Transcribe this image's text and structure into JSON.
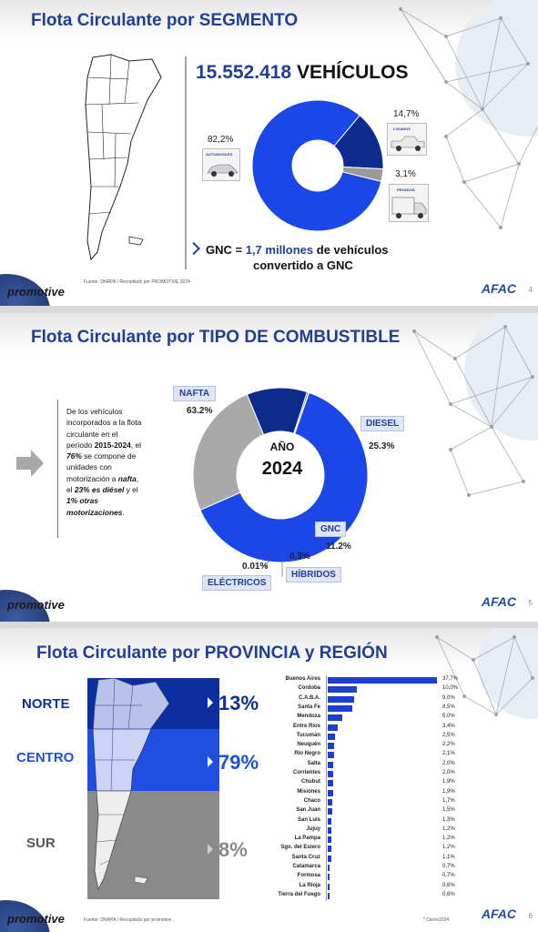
{
  "slide1": {
    "title": "Flota Circulante por SEGMENTO",
    "total_vehicles": "15.552.418",
    "total_vehicles_suffix": "VEHÍCULOS",
    "source": "Fuente: DNRPA / Recopilado por PROMOTIVE 2024",
    "gnc_line1_pre": "GNC = ",
    "gnc_line1_value": "1,7 millones",
    "gnc_line1_post": " de vehículos",
    "gnc_line2": "convertido a GNC",
    "segments": [
      {
        "label": "AUTOMOVILES",
        "pct": "82,2%"
      },
      {
        "label": "LIVIANOS",
        "pct": "14,7%"
      },
      {
        "label": "PESADOS",
        "pct": "3,1%"
      }
    ],
    "page": "4"
  },
  "slide2": {
    "title": "Flota Circulante por TIPO DE COMBUSTIBLE",
    "center_label": "AÑO",
    "center_year": "2024",
    "text_lines": [
      "De los vehículos",
      "incorporados a la flota",
      "circulante en el",
      "período ",
      "2015-2024",
      ", el",
      "76%",
      " se compone de",
      "unidades con",
      "motorización a ",
      "nafta",
      ",",
      "el ",
      "23% es diésel",
      " y el",
      "1% otras",
      "motorizaciones",
      "."
    ],
    "fuels": [
      {
        "label": "NAFTA",
        "pct": "63.2%"
      },
      {
        "label": "DIESEL",
        "pct": "25.3%"
      },
      {
        "label": "GNC",
        "pct": "11.2%"
      },
      {
        "label": "HÍBRIDOS",
        "pct": "0.3%"
      },
      {
        "label": "ELÉCTRICOS",
        "pct": "0.01%"
      }
    ],
    "page": "5"
  },
  "slide3": {
    "title": "Flota Circulante por PROVINCIA y REGIÓN",
    "regions": [
      {
        "label": "NORTE",
        "pct": "13%",
        "color": "#0b2f9e"
      },
      {
        "label": "CENTRO",
        "pct": "79%",
        "color": "#1f4fe0"
      },
      {
        "label": "SUR",
        "pct": "8%",
        "color": "#8a8a8a"
      }
    ],
    "source": "Fuente: DNRPA / Recopilado por promotive",
    "footnote": "* Cierre2024",
    "page": "6"
  },
  "brand": "promotive",
  "afac": "AFAC",
  "chart_data": [
    {
      "type": "pie",
      "title": "Flota Circulante por SEGMENTO",
      "categories": [
        "AUTOMOVILES",
        "LIVIANOS",
        "PESADOS"
      ],
      "values": [
        82.2,
        14.7,
        3.1
      ],
      "colors": [
        "#1b47e8",
        "#0d2a8c",
        "#9a9a9a"
      ]
    },
    {
      "type": "pie",
      "title": "Flota Circulante por TIPO DE COMBUSTIBLE",
      "categories": [
        "NAFTA",
        "DIESEL",
        "GNC",
        "HÍBRIDOS",
        "ELÉCTRICOS"
      ],
      "values": [
        63.2,
        25.3,
        11.2,
        0.3,
        0.01
      ],
      "colors": [
        "#1b47e8",
        "#a9a9a9",
        "#0d2a8c",
        "#5a5a5a",
        "#cccccc"
      ]
    },
    {
      "type": "bar",
      "title": "Flota Circulante por PROVINCIA y REGIÓN",
      "orientation": "horizontal",
      "categories": [
        "Buenos Aires",
        "Córdoba",
        "C.A.B.A.",
        "Santa Fe",
        "Mendoza",
        "Entre Ríos",
        "Tucumán",
        "Neuquén",
        "Rio Negro",
        "Salta",
        "Corrientes",
        "Chubut",
        "Misiones",
        "Chaco",
        "San Juan",
        "San Luis",
        "Jujuy",
        "La Pampa",
        "Sgo. del Estero",
        "Santa Cruz",
        "Catamarca",
        "Formosa",
        "La Rioja",
        "Tierra del Fuego"
      ],
      "values": [
        37.7,
        10.0,
        9.0,
        8.5,
        5.0,
        3.4,
        2.5,
        2.2,
        2.1,
        2.0,
        2.0,
        1.9,
        1.9,
        1.7,
        1.5,
        1.3,
        1.2,
        1.2,
        1.2,
        1.1,
        0.7,
        0.7,
        0.6,
        0.6
      ],
      "labels": [
        "37,7%",
        "10,0%",
        "9,0%",
        "8,5%",
        "5,0%",
        "3,4%",
        "2,5%",
        "2,2%",
        "2,1%",
        "2,0%",
        "2,0%",
        "1,9%",
        "1,9%",
        "1,7%",
        "1,5%",
        "1,3%",
        "1,2%",
        "1,2%",
        "1,2%",
        "1,1%",
        "0,7%",
        "0,7%",
        "0,6%",
        "0,6%"
      ],
      "color": "#1d3fd0"
    }
  ]
}
